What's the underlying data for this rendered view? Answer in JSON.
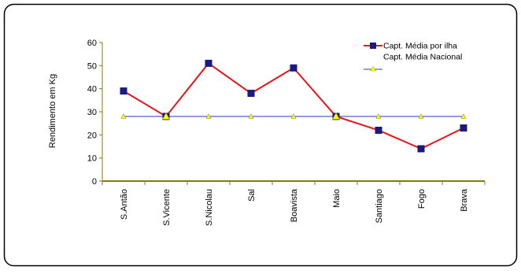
{
  "chart_data": {
    "type": "line",
    "ylabel": "Rendimento em Kg",
    "xlabel": "",
    "categories": [
      "S.Antão",
      "S.Vicente",
      "S.Nicolau",
      "Sal",
      "Boavista",
      "Maio",
      "Santiago",
      "Fogo",
      "Brava"
    ],
    "ylim": [
      0,
      60
    ],
    "yticks": [
      0,
      10,
      20,
      30,
      40,
      50,
      60
    ],
    "grid": false,
    "legend_position": "top-right",
    "series": [
      {
        "name": "Capt. Média por ilha",
        "values": [
          39,
          28,
          51,
          38,
          49,
          28,
          22,
          14,
          23
        ],
        "line_color": "#e8141b",
        "marker_fill": "#1a1a80",
        "marker": "square"
      },
      {
        "name": "Capt. Média Nacional",
        "values": [
          28,
          28,
          28,
          28,
          28,
          28,
          28,
          28,
          28
        ],
        "line_color": "#2b3bb5",
        "marker_fill": "#ffff00",
        "marker": "triangle"
      }
    ],
    "axis_color": "#808000"
  }
}
